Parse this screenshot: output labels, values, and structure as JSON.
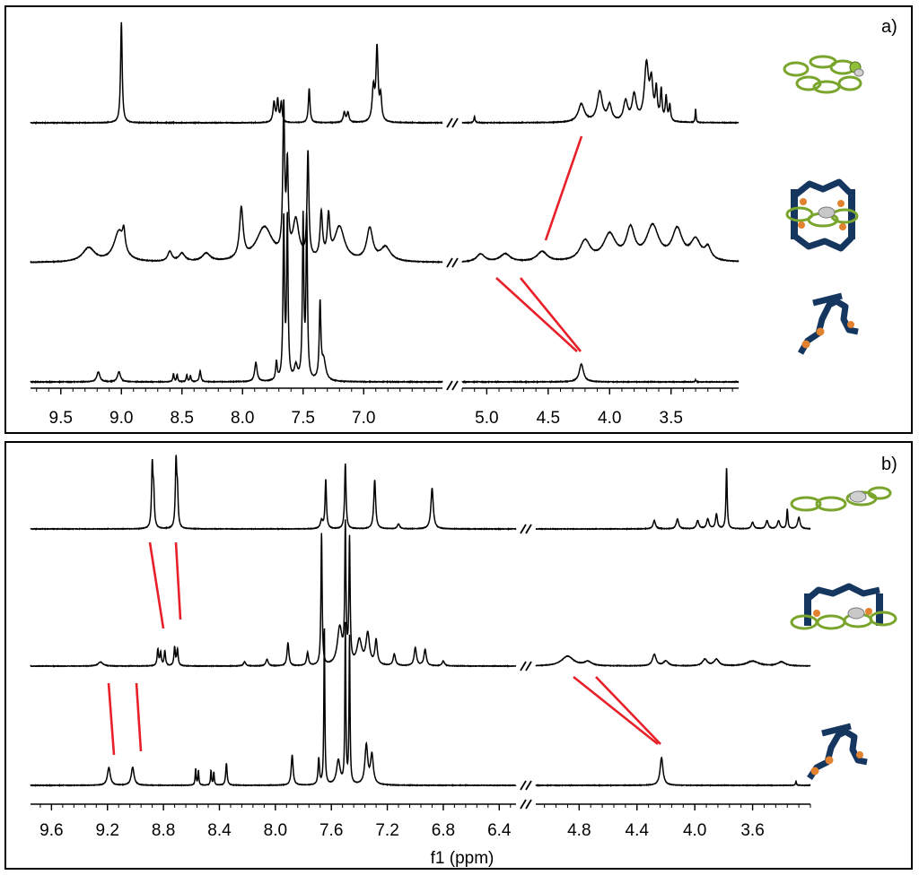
{
  "figure": {
    "xlabel": "f1 (ppm)"
  },
  "colors": {
    "trace": "#000000",
    "correlation": "#e8202a",
    "cage_ligand": "#15365f",
    "guest": "#8fbe3a",
    "linker": "#e3822e",
    "metal": "#c8c8c8"
  },
  "chart_data": [
    {
      "type": "line",
      "panel_label": "a)",
      "broken_axis": true,
      "axis_segments": [
        {
          "xlim": [
            9.75,
            6.35
          ],
          "ticks": [
            9.5,
            9.0,
            8.5,
            8.0,
            7.5,
            7.0
          ],
          "tick_labels": [
            "9.5",
            "9.0",
            "8.5",
            "8.0",
            "7.5",
            "7.0"
          ]
        },
        {
          "xlim": [
            5.2,
            2.95
          ],
          "ticks": [
            5.0,
            4.5,
            4.0,
            3.5
          ],
          "tick_labels": [
            "5.0",
            "4.5",
            "4.0",
            "3.5"
          ]
        }
      ],
      "series": [
        {
          "role": "top spectrum (guest)",
          "peaks": [
            {
              "ppm": 9.0,
              "h": 1.0,
              "w": 0.008
            },
            {
              "ppm": 7.74,
              "h": 0.2,
              "w": 0.01
            },
            {
              "ppm": 7.71,
              "h": 0.22,
              "w": 0.008
            },
            {
              "ppm": 7.68,
              "h": 0.2,
              "w": 0.008
            },
            {
              "ppm": 7.45,
              "h": 0.34,
              "w": 0.008
            },
            {
              "ppm": 7.16,
              "h": 0.1,
              "w": 0.01
            },
            {
              "ppm": 7.13,
              "h": 0.1,
              "w": 0.01
            },
            {
              "ppm": 6.92,
              "h": 0.33,
              "w": 0.012
            },
            {
              "ppm": 6.89,
              "h": 0.72,
              "w": 0.01
            },
            {
              "ppm": 6.86,
              "h": 0.24,
              "w": 0.01
            },
            {
              "ppm": 5.1,
              "h": 0.06,
              "w": 0.006
            },
            {
              "ppm": 4.23,
              "h": 0.18,
              "w": 0.03
            },
            {
              "ppm": 4.08,
              "h": 0.3,
              "w": 0.025
            },
            {
              "ppm": 4.0,
              "h": 0.16,
              "w": 0.02
            },
            {
              "ppm": 3.87,
              "h": 0.2,
              "w": 0.02
            },
            {
              "ppm": 3.8,
              "h": 0.26,
              "w": 0.02
            },
            {
              "ppm": 3.7,
              "h": 0.56,
              "w": 0.02
            },
            {
              "ppm": 3.66,
              "h": 0.36,
              "w": 0.015
            },
            {
              "ppm": 3.62,
              "h": 0.3,
              "w": 0.01
            },
            {
              "ppm": 3.58,
              "h": 0.3,
              "w": 0.008
            },
            {
              "ppm": 3.54,
              "h": 0.24,
              "w": 0.008
            },
            {
              "ppm": 3.51,
              "h": 0.16,
              "w": 0.008
            },
            {
              "ppm": 3.3,
              "h": 0.14,
              "w": 0.004
            }
          ]
        },
        {
          "role": "middle spectrum (complex)",
          "peaks": [
            {
              "ppm": 9.27,
              "h": 0.14,
              "w": 0.06
            },
            {
              "ppm": 9.02,
              "h": 0.3,
              "w": 0.05
            },
            {
              "ppm": 8.98,
              "h": 0.18,
              "w": 0.012
            },
            {
              "ppm": 8.6,
              "h": 0.1,
              "w": 0.02
            },
            {
              "ppm": 8.5,
              "h": 0.08,
              "w": 0.03
            },
            {
              "ppm": 8.3,
              "h": 0.08,
              "w": 0.04
            },
            {
              "ppm": 8.01,
              "h": 0.5,
              "w": 0.018
            },
            {
              "ppm": 7.82,
              "h": 0.34,
              "w": 0.08
            },
            {
              "ppm": 7.66,
              "h": 1.45,
              "w": 0.009
            },
            {
              "ppm": 7.63,
              "h": 0.85,
              "w": 0.009
            },
            {
              "ppm": 7.46,
              "h": 1.05,
              "w": 0.009
            },
            {
              "ppm": 7.56,
              "h": 0.38,
              "w": 0.03
            },
            {
              "ppm": 7.35,
              "h": 0.45,
              "w": 0.012
            },
            {
              "ppm": 7.29,
              "h": 0.4,
              "w": 0.012
            },
            {
              "ppm": 7.2,
              "h": 0.34,
              "w": 0.05
            },
            {
              "ppm": 6.95,
              "h": 0.32,
              "w": 0.03
            },
            {
              "ppm": 6.82,
              "h": 0.14,
              "w": 0.05
            },
            {
              "ppm": 5.05,
              "h": 0.08,
              "w": 0.04
            },
            {
              "ppm": 4.85,
              "h": 0.08,
              "w": 0.05
            },
            {
              "ppm": 4.55,
              "h": 0.1,
              "w": 0.05
            },
            {
              "ppm": 4.2,
              "h": 0.2,
              "w": 0.05
            },
            {
              "ppm": 4.0,
              "h": 0.26,
              "w": 0.06
            },
            {
              "ppm": 3.83,
              "h": 0.3,
              "w": 0.04
            },
            {
              "ppm": 3.65,
              "h": 0.34,
              "w": 0.06
            },
            {
              "ppm": 3.45,
              "h": 0.3,
              "w": 0.05
            },
            {
              "ppm": 3.3,
              "h": 0.2,
              "w": 0.05
            },
            {
              "ppm": 3.2,
              "h": 0.12,
              "w": 0.03
            }
          ]
        },
        {
          "role": "bottom spectrum (ligand)",
          "peaks": [
            {
              "ppm": 9.19,
              "h": 0.1,
              "w": 0.015
            },
            {
              "ppm": 9.02,
              "h": 0.1,
              "w": 0.015
            },
            {
              "ppm": 8.57,
              "h": 0.08,
              "w": 0.006
            },
            {
              "ppm": 8.54,
              "h": 0.07,
              "w": 0.006
            },
            {
              "ppm": 8.46,
              "h": 0.07,
              "w": 0.006
            },
            {
              "ppm": 8.43,
              "h": 0.06,
              "w": 0.006
            },
            {
              "ppm": 8.35,
              "h": 0.11,
              "w": 0.008
            },
            {
              "ppm": 7.89,
              "h": 0.19,
              "w": 0.012
            },
            {
              "ppm": 7.72,
              "h": 0.18,
              "w": 0.008
            },
            {
              "ppm": 7.66,
              "h": 1.6,
              "w": 0.007
            },
            {
              "ppm": 7.63,
              "h": 1.6,
              "w": 0.007
            },
            {
              "ppm": 7.56,
              "h": 0.14,
              "w": 0.015
            },
            {
              "ppm": 7.5,
              "h": 1.6,
              "w": 0.007
            },
            {
              "ppm": 7.47,
              "h": 1.6,
              "w": 0.007
            },
            {
              "ppm": 7.36,
              "h": 0.75,
              "w": 0.008
            },
            {
              "ppm": 7.33,
              "h": 0.2,
              "w": 0.02
            },
            {
              "ppm": 4.23,
              "h": 0.18,
              "w": 0.02
            },
            {
              "ppm": 3.3,
              "h": 0.02,
              "w": 0.004
            }
          ]
        }
      ]
    },
    {
      "type": "line",
      "panel_label": "b)",
      "broken_axis": true,
      "axis_segments": [
        {
          "xlim": [
            9.75,
            6.28
          ],
          "ticks": [
            9.6,
            9.2,
            8.8,
            8.4,
            8.0,
            7.6,
            7.2,
            6.8,
            6.4
          ],
          "tick_labels": [
            "9.6",
            "9.2",
            "8.8",
            "8.4",
            "8.0",
            "7.6",
            "7.2",
            "6.8",
            "6.4"
          ]
        },
        {
          "xlim": [
            5.1,
            3.2
          ],
          "ticks": [
            4.8,
            4.4,
            4.0,
            3.6
          ],
          "tick_labels": [
            "4.8",
            "4.4",
            "4.0",
            "3.6"
          ]
        }
      ],
      "series": [
        {
          "role": "top spectrum (guest)",
          "peaks": [
            {
              "ppm": 8.88,
              "h": 0.75,
              "w": 0.006
            },
            {
              "ppm": 8.87,
              "h": 0.4,
              "w": 0.006
            },
            {
              "ppm": 8.71,
              "h": 0.8,
              "w": 0.006
            },
            {
              "ppm": 8.7,
              "h": 0.4,
              "w": 0.006
            },
            {
              "ppm": 7.67,
              "h": 0.1,
              "w": 0.01
            },
            {
              "ppm": 7.64,
              "h": 0.6,
              "w": 0.006
            },
            {
              "ppm": 7.5,
              "h": 0.8,
              "w": 0.006
            },
            {
              "ppm": 7.29,
              "h": 0.6,
              "w": 0.008
            },
            {
              "ppm": 7.12,
              "h": 0.06,
              "w": 0.01
            },
            {
              "ppm": 6.88,
              "h": 0.5,
              "w": 0.01
            },
            {
              "ppm": 4.28,
              "h": 0.1,
              "w": 0.01
            },
            {
              "ppm": 4.12,
              "h": 0.12,
              "w": 0.01
            },
            {
              "ppm": 3.98,
              "h": 0.1,
              "w": 0.01
            },
            {
              "ppm": 3.91,
              "h": 0.12,
              "w": 0.01
            },
            {
              "ppm": 3.85,
              "h": 0.18,
              "w": 0.008
            },
            {
              "ppm": 3.78,
              "h": 0.75,
              "w": 0.005
            },
            {
              "ppm": 3.6,
              "h": 0.08,
              "w": 0.01
            },
            {
              "ppm": 3.5,
              "h": 0.1,
              "w": 0.01
            },
            {
              "ppm": 3.42,
              "h": 0.1,
              "w": 0.01
            },
            {
              "ppm": 3.36,
              "h": 0.24,
              "w": 0.005
            },
            {
              "ppm": 3.28,
              "h": 0.14,
              "w": 0.01
            }
          ]
        },
        {
          "role": "middle spectrum (complex)",
          "peaks": [
            {
              "ppm": 9.25,
              "h": 0.05,
              "w": 0.02
            },
            {
              "ppm": 8.84,
              "h": 0.2,
              "w": 0.006
            },
            {
              "ppm": 8.82,
              "h": 0.16,
              "w": 0.006
            },
            {
              "ppm": 8.79,
              "h": 0.18,
              "w": 0.006
            },
            {
              "ppm": 8.72,
              "h": 0.22,
              "w": 0.006
            },
            {
              "ppm": 8.7,
              "h": 0.2,
              "w": 0.006
            },
            {
              "ppm": 8.22,
              "h": 0.05,
              "w": 0.01
            },
            {
              "ppm": 8.06,
              "h": 0.08,
              "w": 0.01
            },
            {
              "ppm": 7.91,
              "h": 0.28,
              "w": 0.008
            },
            {
              "ppm": 7.77,
              "h": 0.16,
              "w": 0.008
            },
            {
              "ppm": 7.67,
              "h": 1.62,
              "w": 0.005
            },
            {
              "ppm": 7.54,
              "h": 0.46,
              "w": 0.02
            },
            {
              "ppm": 7.5,
              "h": 1.65,
              "w": 0.005
            },
            {
              "ppm": 7.47,
              "h": 1.5,
              "w": 0.005
            },
            {
              "ppm": 7.4,
              "h": 0.3,
              "w": 0.02
            },
            {
              "ppm": 7.34,
              "h": 0.38,
              "w": 0.015
            },
            {
              "ppm": 7.28,
              "h": 0.3,
              "w": 0.01
            },
            {
              "ppm": 7.15,
              "h": 0.14,
              "w": 0.01
            },
            {
              "ppm": 7.0,
              "h": 0.22,
              "w": 0.01
            },
            {
              "ppm": 6.93,
              "h": 0.2,
              "w": 0.01
            },
            {
              "ppm": 6.8,
              "h": 0.06,
              "w": 0.01
            },
            {
              "ppm": 4.88,
              "h": 0.12,
              "w": 0.05
            },
            {
              "ppm": 4.74,
              "h": 0.05,
              "w": 0.03
            },
            {
              "ppm": 4.28,
              "h": 0.14,
              "w": 0.015
            },
            {
              "ppm": 4.2,
              "h": 0.06,
              "w": 0.02
            },
            {
              "ppm": 3.93,
              "h": 0.08,
              "w": 0.02
            },
            {
              "ppm": 3.85,
              "h": 0.08,
              "w": 0.02
            },
            {
              "ppm": 3.6,
              "h": 0.06,
              "w": 0.05
            },
            {
              "ppm": 3.4,
              "h": 0.05,
              "w": 0.03
            }
          ]
        },
        {
          "role": "bottom spectrum (ligand)",
          "peaks": [
            {
              "ppm": 9.19,
              "h": 0.22,
              "w": 0.012
            },
            {
              "ppm": 9.02,
              "h": 0.22,
              "w": 0.012
            },
            {
              "ppm": 8.57,
              "h": 0.2,
              "w": 0.004
            },
            {
              "ppm": 8.55,
              "h": 0.18,
              "w": 0.004
            },
            {
              "ppm": 8.46,
              "h": 0.18,
              "w": 0.004
            },
            {
              "ppm": 8.44,
              "h": 0.16,
              "w": 0.004
            },
            {
              "ppm": 8.35,
              "h": 0.27,
              "w": 0.006
            },
            {
              "ppm": 7.88,
              "h": 0.37,
              "w": 0.008
            },
            {
              "ppm": 7.69,
              "h": 0.32,
              "w": 0.006
            },
            {
              "ppm": 7.65,
              "h": 1.95,
              "w": 0.004
            },
            {
              "ppm": 7.55,
              "h": 0.3,
              "w": 0.015
            },
            {
              "ppm": 7.5,
              "h": 1.95,
              "w": 0.004
            },
            {
              "ppm": 7.47,
              "h": 1.8,
              "w": 0.004
            },
            {
              "ppm": 7.35,
              "h": 0.48,
              "w": 0.012
            },
            {
              "ppm": 7.31,
              "h": 0.36,
              "w": 0.012
            },
            {
              "ppm": 4.23,
              "h": 0.34,
              "w": 0.012
            },
            {
              "ppm": 3.3,
              "h": 0.05,
              "w": 0.004
            }
          ]
        }
      ]
    }
  ]
}
